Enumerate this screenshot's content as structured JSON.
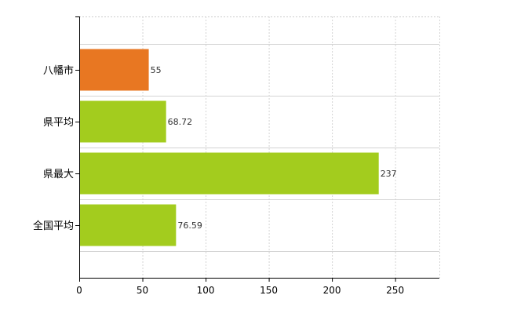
{
  "chart_data": {
    "type": "bar",
    "orientation": "horizontal",
    "categories": [
      "八幡市",
      "県平均",
      "県最大",
      "全国平均"
    ],
    "values": [
      55,
      68.72,
      237,
      76.59
    ],
    "value_labels": [
      "55",
      "68.72",
      "237",
      "76.59"
    ],
    "bar_colors": [
      "#e87722",
      "#a3cc1e",
      "#a3cc1e",
      "#a3cc1e"
    ],
    "xlim": [
      0,
      285
    ],
    "xticks": [
      0,
      50,
      100,
      150,
      200,
      250
    ],
    "grid": true,
    "legend": "none"
  }
}
